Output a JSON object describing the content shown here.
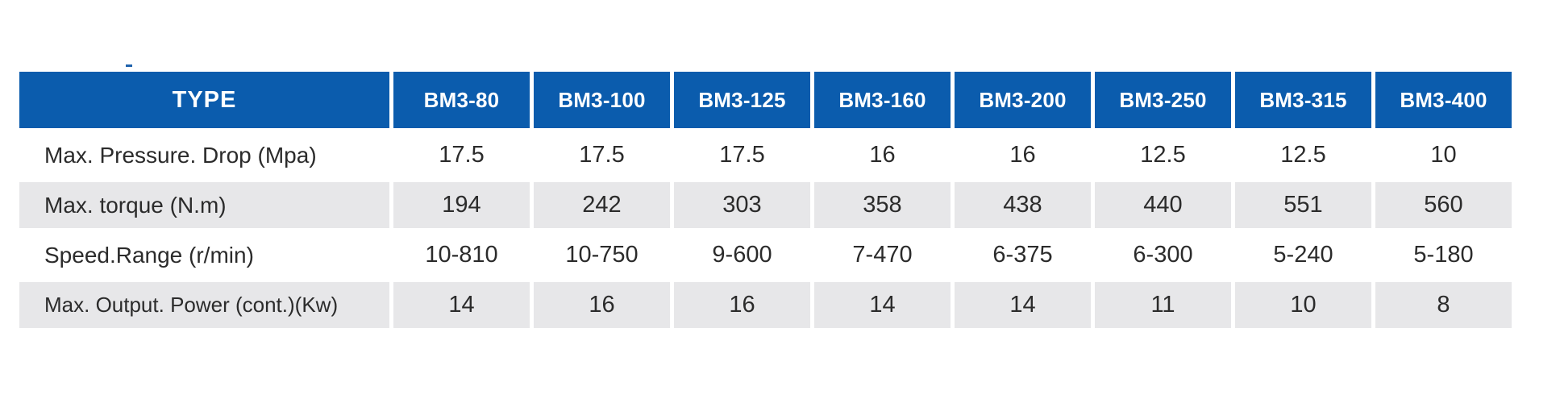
{
  "table": {
    "type_label": "TYPE",
    "models": [
      "BM3-80",
      "BM3-100",
      "BM3-125",
      "BM3-160",
      "BM3-200",
      "BM3-250",
      "BM3-315",
      "BM3-400"
    ],
    "rows": [
      {
        "label": "Max. Pressure. Drop (Mpa)",
        "values": [
          "17.5",
          "17.5",
          "17.5",
          "16",
          "16",
          "12.5",
          "12.5",
          "10"
        ]
      },
      {
        "label": "Max. torque (N.m)",
        "values": [
          "194",
          "242",
          "303",
          "358",
          "438",
          "440",
          "551",
          "560"
        ]
      },
      {
        "label": "Speed.Range (r/min)",
        "values": [
          "10-810",
          "10-750",
          "9-600",
          "7-470",
          "6-375",
          "6-300",
          "5-240",
          "5-180"
        ]
      },
      {
        "label": "Max. Output. Power (cont.)(Kw)",
        "values": [
          "14",
          "16",
          "16",
          "14",
          "14",
          "11",
          "10",
          "8"
        ]
      }
    ],
    "colors": {
      "header_bg": "#0b5cad",
      "header_text": "#ffffff",
      "shade_row_bg": "#e7e7e9",
      "body_text": "#2b2b2b"
    }
  }
}
